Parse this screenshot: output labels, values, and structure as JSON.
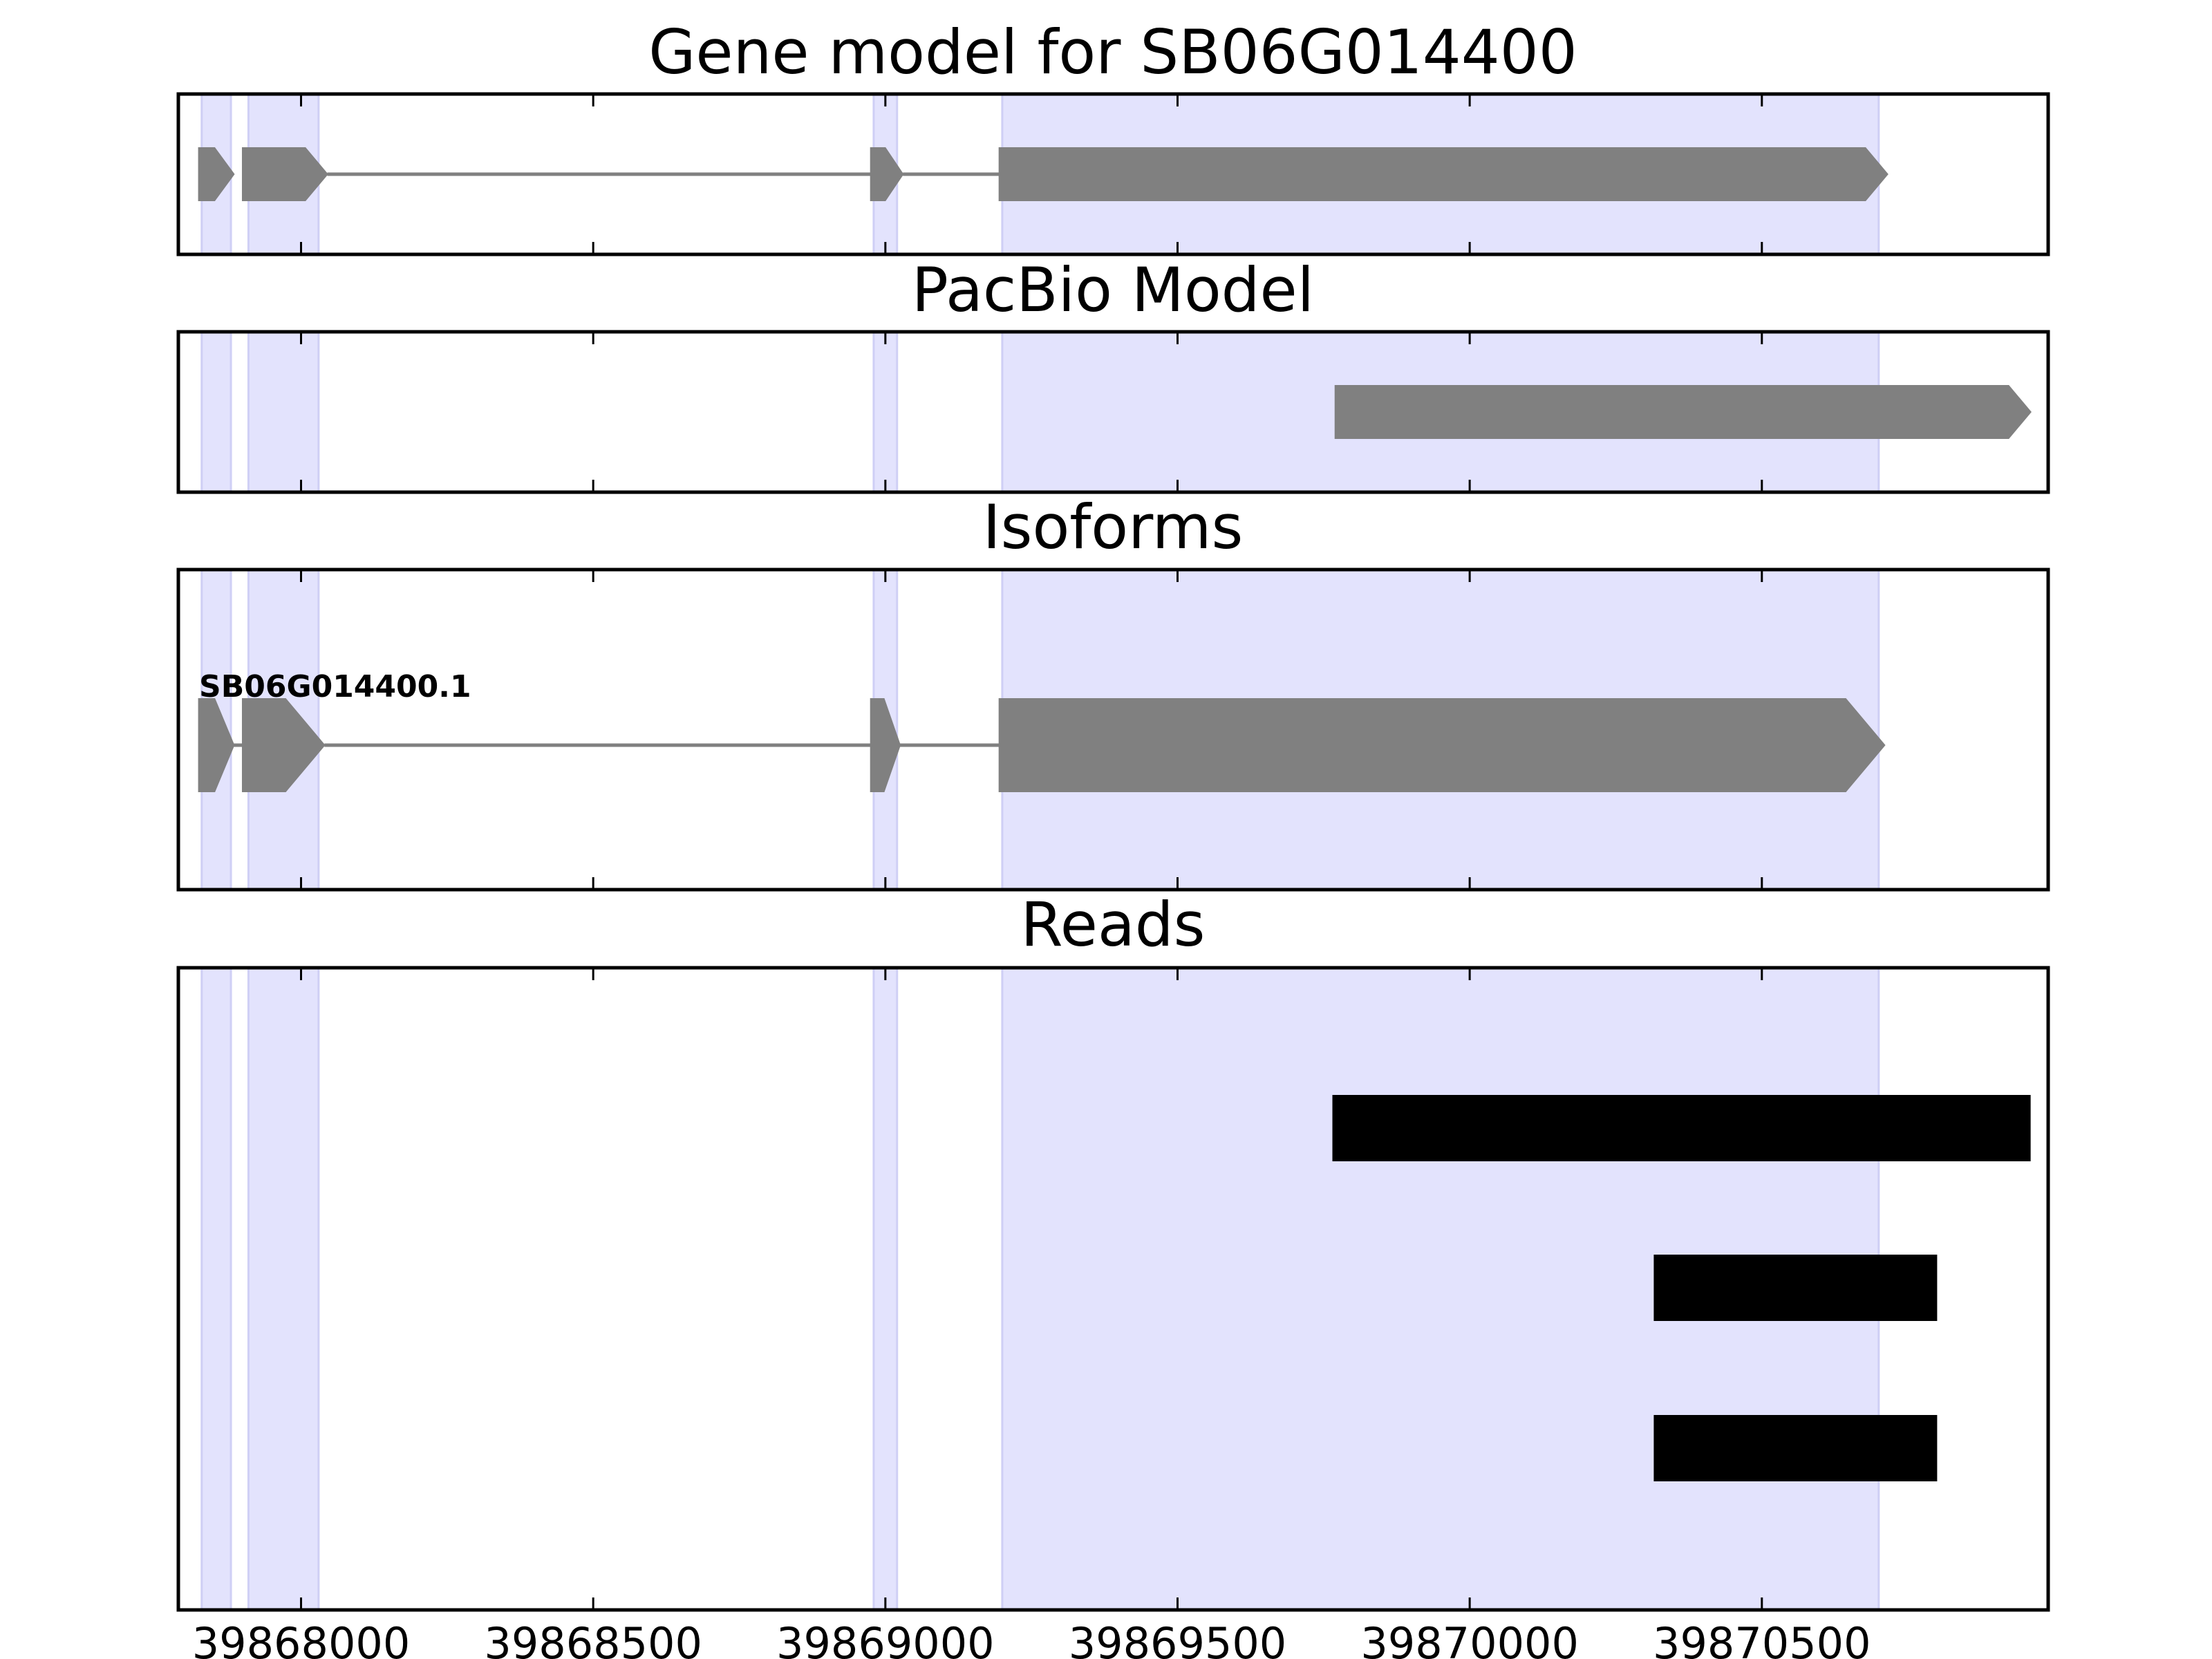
{
  "chart_data": {
    "type": "gene_model_tracks",
    "x_range": [
      39867790,
      39870990
    ],
    "x_ticks": [
      39868000,
      39868500,
      39869000,
      39869500,
      39870000,
      39870500
    ],
    "x_tick_labels": [
      "39868000",
      "39868500",
      "39869000",
      "39869500",
      "39870000",
      "39870500"
    ],
    "colors": {
      "exon_shading": "#e3e3fd",
      "exon_shading_edge": "#cfcff5",
      "gene_feature": "#808080",
      "intron_line": "#808080",
      "read": "#000000",
      "axis": "#000000"
    },
    "shaded_exons": [
      [
        39867830,
        39867880
      ],
      [
        39867910,
        39868030
      ],
      [
        39868980,
        39869020
      ],
      [
        39869200,
        39870700
      ]
    ],
    "panels": [
      {
        "id": "gene-model",
        "title": "Gene model for SB06G014400",
        "features": [
          {
            "start": 39867825,
            "end": 39867885,
            "strand": "+"
          },
          {
            "start": 39867900,
            "end": 39868045,
            "strand": "+"
          },
          {
            "start": 39868975,
            "end": 39869030,
            "strand": "+"
          },
          {
            "start": 39869195,
            "end": 39870715,
            "strand": "+"
          }
        ],
        "introns": [
          [
            39868045,
            39868975
          ],
          [
            39869030,
            39869195
          ]
        ]
      },
      {
        "id": "pacbio-model",
        "title": "PacBio Model",
        "features": [
          {
            "start": 39869770,
            "end": 39870960,
            "strand": "+"
          }
        ],
        "introns": []
      },
      {
        "id": "isoforms",
        "title": "Isoforms",
        "isoform_label": "SB06G014400.1",
        "features": [
          {
            "start": 39867825,
            "end": 39867885,
            "strand": "+"
          },
          {
            "start": 39867900,
            "end": 39868040,
            "strand": "+"
          },
          {
            "start": 39868975,
            "end": 39869025,
            "strand": "+"
          },
          {
            "start": 39869195,
            "end": 39870710,
            "strand": "+"
          }
        ],
        "introns": [
          [
            39867885,
            39867900
          ],
          [
            39868040,
            39868975
          ],
          [
            39869025,
            39869195
          ]
        ]
      },
      {
        "id": "reads",
        "title": "Reads",
        "reads": [
          {
            "start": 39869765,
            "end": 39870960
          },
          {
            "start": 39870315,
            "end": 39870800
          },
          {
            "start": 39870315,
            "end": 39870800
          }
        ]
      }
    ]
  }
}
